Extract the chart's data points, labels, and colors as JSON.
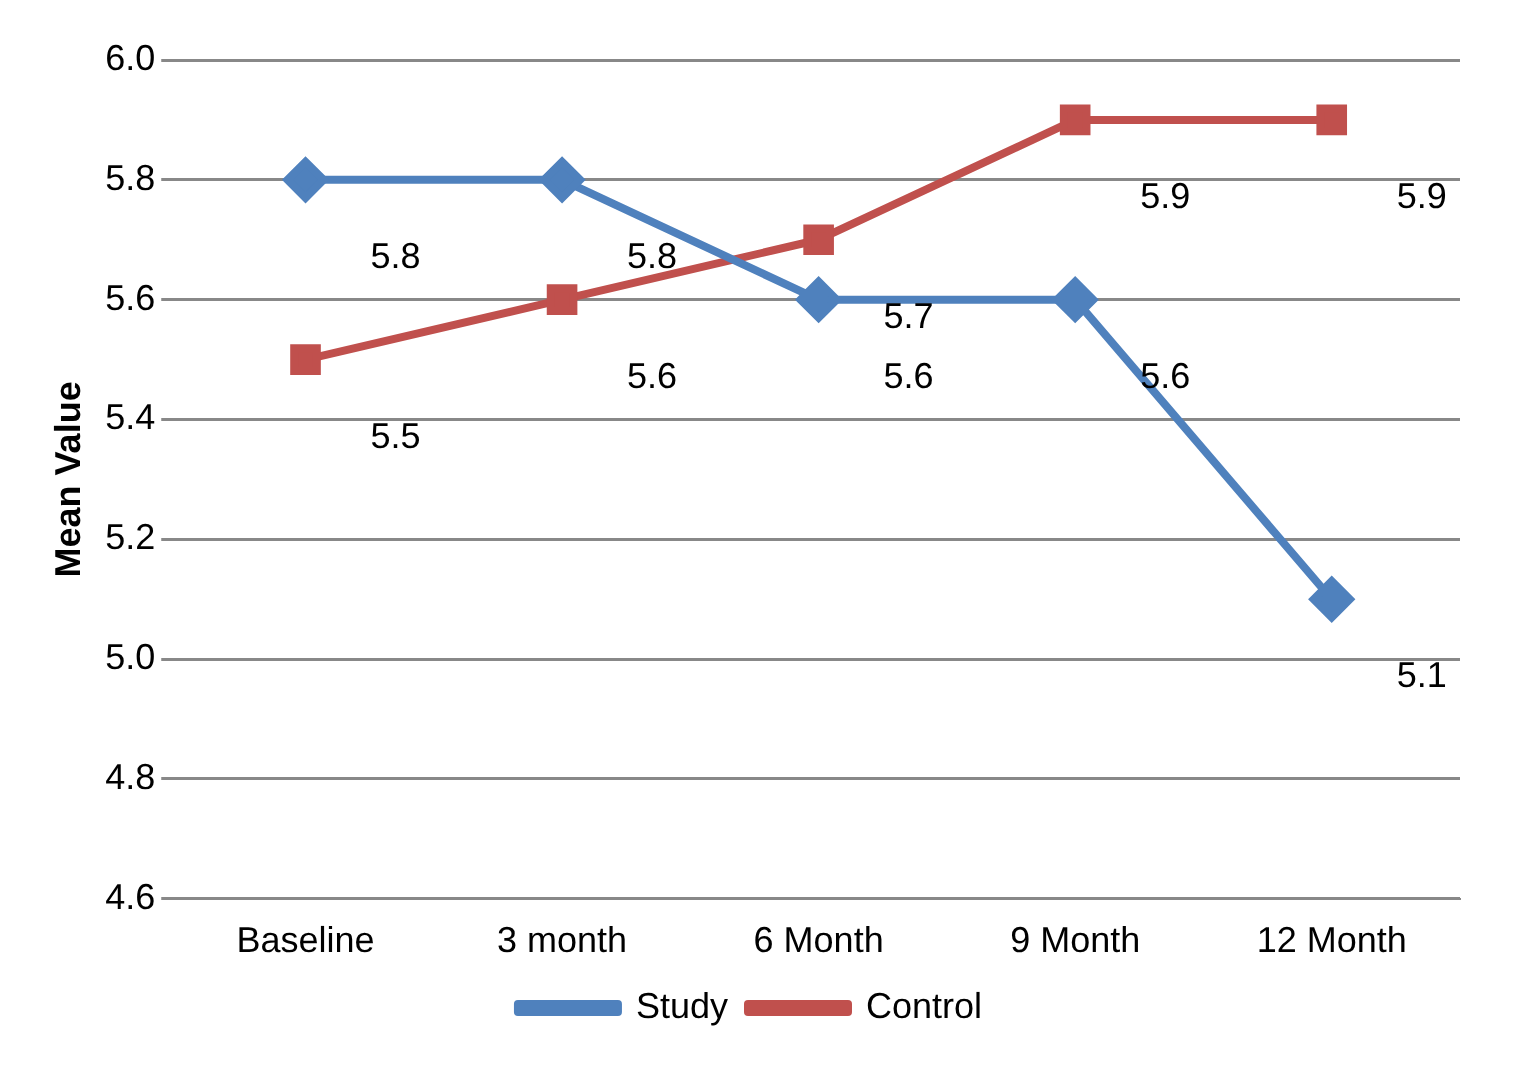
{
  "chart_data": {
    "type": "line",
    "ylabel": "Mean Value",
    "categories": [
      "Baseline",
      "3 month",
      "6 Month",
      "9 Month",
      "12 Month"
    ],
    "series": [
      {
        "name": "Study",
        "color": "#4f81bd",
        "marker": "diamond",
        "values": [
          5.8,
          5.8,
          5.6,
          5.6,
          5.1
        ]
      },
      {
        "name": "Control",
        "color": "#c0504d",
        "marker": "square",
        "values": [
          5.5,
          5.6,
          5.7,
          5.9,
          5.9
        ]
      }
    ],
    "ylim": [
      4.6,
      6.0
    ],
    "yticks": [
      4.6,
      4.8,
      {
        "value": 5,
        "label": "5.0"
      },
      5.2,
      5.4,
      5.6,
      5.8,
      {
        "value": 6,
        "label": "6.0"
      }
    ],
    "grid": "y",
    "legend": "bottom",
    "data_labels": true
  }
}
